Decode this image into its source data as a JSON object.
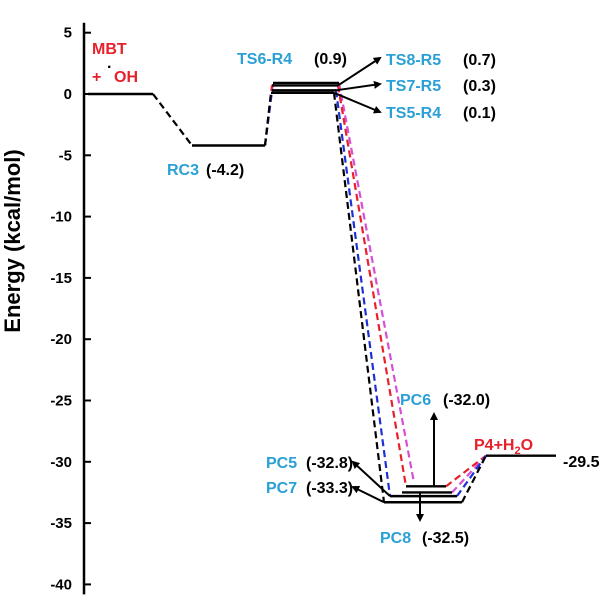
{
  "chart_data": {
    "type": "line",
    "ylabel": "Energy (kcal/mol)",
    "ylim": [
      -40,
      5
    ],
    "yticks": [
      5,
      0,
      -5,
      -10,
      -15,
      -20,
      -25,
      -30,
      -35,
      -40
    ],
    "grid": false,
    "colors": {
      "path_black": "#000000",
      "path_blue": "#1f2fd6",
      "path_red": "#e8202a",
      "path_magenta": "#d64fd6",
      "label_cyan": "#2aa0d6",
      "label_red": "#e8202a"
    },
    "levels": [
      {
        "id": "reactants",
        "y": 0
      },
      {
        "id": "RC3",
        "y": -4.2
      },
      {
        "id": "TS6-R4",
        "y": 0.9
      },
      {
        "id": "TS8-R5",
        "y": 0.7
      },
      {
        "id": "TS7-R5",
        "y": 0.3
      },
      {
        "id": "TS5-R4",
        "y": 0.1
      },
      {
        "id": "PC6",
        "y": -32.0
      },
      {
        "id": "PC5",
        "y": -32.8
      },
      {
        "id": "PC8",
        "y": -32.5
      },
      {
        "id": "PC7",
        "y": -33.3
      },
      {
        "id": "P4+H2O",
        "y": -29.5
      }
    ],
    "labels": {
      "reactant_line1": "MBT",
      "reactant_line2": "+ ",
      "reactant_radical_dot": "·",
      "reactant_oh": "OH",
      "rc3_name": "RC3",
      "rc3_value": "(-4.2)",
      "ts6_name": "TS6-R4",
      "ts6_value": "(0.9)",
      "ts8_name": "TS8-R5",
      "ts8_value": "(0.7)",
      "ts7_name": "TS7-R5",
      "ts7_value": "(0.3)",
      "ts5_name": "TS5-R4",
      "ts5_value": "(0.1)",
      "pc6_name": "PC6",
      "pc6_value": "(-32.0)",
      "pc5_name": "PC5",
      "pc5_value": "(-32.8)",
      "pc7_name": "PC7",
      "pc7_value": "(-33.3)",
      "pc8_name": "PC8",
      "pc8_value": "(-32.5)",
      "product_p4": "P4+H",
      "product_sub": "2",
      "product_o": "O",
      "product_value": "-29.5"
    }
  }
}
